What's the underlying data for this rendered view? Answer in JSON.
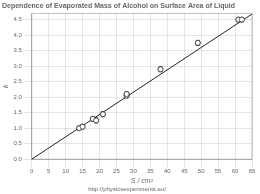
{
  "chart_data": {
    "type": "scatter",
    "title": "Dependence of Evaporated Mass of Alcohol on Surface Area of Liquid",
    "xlabel": "S / cm²",
    "ylabel": "k",
    "annotations": [
      "http://physicsexperiments.eu/"
    ],
    "xlim": [
      0,
      65
    ],
    "ylim": [
      0,
      4.7
    ],
    "xticks": [
      0,
      5,
      10,
      15,
      20,
      25,
      30,
      35,
      40,
      45,
      50,
      55,
      60,
      65
    ],
    "yticks": [
      {
        "value": 0,
        "label": "0.0"
      },
      0.5,
      {
        "value": 1,
        "label": "1.0"
      },
      1.5,
      {
        "value": 2,
        "label": "2.0"
      },
      2.5,
      {
        "value": 3,
        "label": "3.0"
      },
      3.5,
      {
        "value": 4,
        "label": "4.0"
      },
      4.5
    ],
    "grid": true,
    "series": [
      {
        "type": "line",
        "x": [
          0,
          65
        ],
        "values": [
          0.0,
          4.68
        ],
        "color": "#222222",
        "marker": "none"
      },
      {
        "type": "scatter",
        "x": [
          14,
          15,
          18,
          19,
          21,
          28,
          28,
          38,
          49,
          61,
          62
        ],
        "values": [
          1.0,
          1.05,
          1.3,
          1.25,
          1.45,
          2.05,
          2.1,
          2.9,
          3.75,
          4.5,
          4.5
        ],
        "yerr": [
          0.06,
          0.07,
          0.07,
          0.08,
          0.08,
          0.07,
          0.07,
          0.08,
          0.08,
          0.07,
          0.07
        ],
        "color": "#333333",
        "marker": "open circle"
      }
    ]
  }
}
